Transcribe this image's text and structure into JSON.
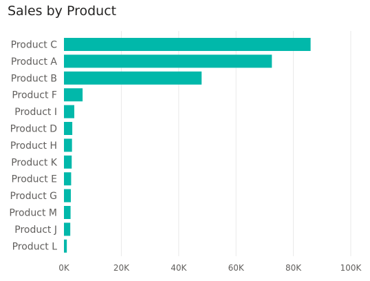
{
  "chart_data": {
    "type": "bar",
    "orientation": "horizontal",
    "title": "Sales by Product",
    "xlabel": "",
    "ylabel": "",
    "categories": [
      "Product C",
      "Product A",
      "Product B",
      "Product F",
      "Product I",
      "Product D",
      "Product H",
      "Product K",
      "Product E",
      "Product G",
      "Product M",
      "Product J",
      "Product L"
    ],
    "values": [
      86000,
      72500,
      48000,
      6500,
      3600,
      2900,
      2800,
      2700,
      2500,
      2400,
      2300,
      2200,
      1000
    ],
    "xlim": [
      0,
      100000
    ],
    "x_ticks": [
      0,
      20000,
      40000,
      60000,
      80000,
      100000
    ],
    "x_tick_labels": [
      "0K",
      "20K",
      "40K",
      "60K",
      "80K",
      "100K"
    ],
    "grid": true,
    "legend": "none",
    "bar_color": "#01b8aa"
  }
}
